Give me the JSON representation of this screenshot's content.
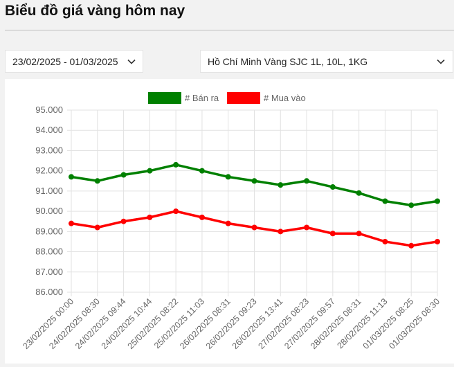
{
  "page": {
    "title": "Biểu đồ giá vàng hôm nay"
  },
  "filters": {
    "date_range": "23/02/2025 - 01/03/2025",
    "region": "Hồ Chí Minh Vàng SJC 1L, 10L, 1KG"
  },
  "icons": {
    "date_dropdown": "chevron-down-icon",
    "region_dropdown": "chevron-down-icon"
  },
  "chart_data": {
    "type": "line",
    "title": "",
    "xlabel": "",
    "ylabel": "",
    "ylim": [
      86000,
      95000
    ],
    "yticks": [
      86000,
      87000,
      88000,
      89000,
      90000,
      91000,
      92000,
      93000,
      94000,
      95000
    ],
    "ytick_labels": [
      "86.000",
      "87.000",
      "88.000",
      "89.000",
      "90.000",
      "91.000",
      "92.000",
      "93.000",
      "94.000",
      "95.000"
    ],
    "grid": true,
    "legend_position": "top",
    "categories": [
      "23/02/2025 00:00",
      "24/02/2025 08:30",
      "24/02/2025 09:44",
      "24/02/2025 10:44",
      "25/02/2025 08:22",
      "25/02/2025 11:03",
      "26/02/2025 08:31",
      "26/02/2025 09:23",
      "26/02/2025 13:41",
      "27/02/2025 08:23",
      "27/02/2025 09:57",
      "28/02/2025 08:31",
      "28/02/2025 11:13",
      "01/03/2025 08:25",
      "01/03/2025 08:30"
    ],
    "series": [
      {
        "name": "# Bán ra",
        "color": "#008000",
        "values": [
          91700,
          91500,
          91800,
          92000,
          92300,
          92000,
          91700,
          91500,
          91300,
          91500,
          91200,
          90900,
          90500,
          90300,
          90500
        ]
      },
      {
        "name": "# Mua vào",
        "color": "#ff0000",
        "values": [
          89400,
          89200,
          89500,
          89700,
          90000,
          89700,
          89400,
          89200,
          89000,
          89200,
          88900,
          88900,
          88500,
          88300,
          88500
        ]
      }
    ]
  }
}
